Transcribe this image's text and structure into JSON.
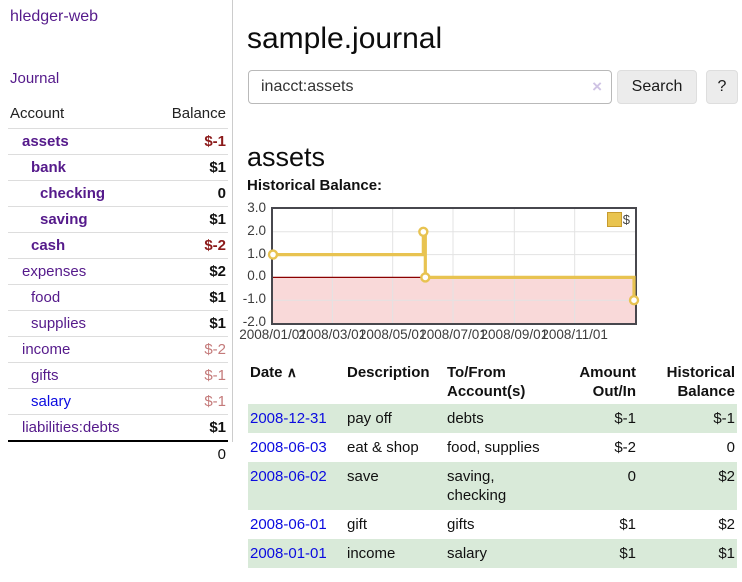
{
  "brand": "hledger-web",
  "nav": {
    "journal": "Journal"
  },
  "sidebar": {
    "col_account": "Account",
    "col_balance": "Balance",
    "accounts": [
      {
        "name": "assets",
        "balance": "$-1"
      },
      {
        "name": "bank",
        "balance": "$1"
      },
      {
        "name": "checking",
        "balance": "0"
      },
      {
        "name": "saving",
        "balance": "$1"
      },
      {
        "name": "cash",
        "balance": "$-2"
      },
      {
        "name": "expenses",
        "balance": "$2"
      },
      {
        "name": "food",
        "balance": "$1"
      },
      {
        "name": "supplies",
        "balance": "$1"
      },
      {
        "name": "income",
        "balance": "$-2"
      },
      {
        "name": "gifts",
        "balance": "$-1"
      },
      {
        "name": "salary",
        "balance": "$-1"
      },
      {
        "name": "liabilities:debts",
        "balance": "$1"
      }
    ],
    "total": "0"
  },
  "header": {
    "title": "sample.journal"
  },
  "search": {
    "value": "inacct:assets",
    "clear_icon": "×",
    "search_label": "Search",
    "help_label": "?"
  },
  "account_page": {
    "heading": "assets",
    "chart_title": "Historical Balance:"
  },
  "chart_data": {
    "type": "line",
    "step": true,
    "title": "Historical Balance",
    "series": [
      {
        "name": "$",
        "color": "#e8c351",
        "points": [
          {
            "date": "2008/01/01",
            "value": 1
          },
          {
            "date": "2008/06/01",
            "value": 2
          },
          {
            "date": "2008/06/03",
            "value": 0
          },
          {
            "date": "2008/12/31",
            "value": -1
          }
        ]
      }
    ],
    "x_range": [
      "2008/01/01",
      "2009/01/01"
    ],
    "ylim": [
      -2,
      3
    ],
    "y_ticks": [
      "3.0",
      "2.0",
      "1.0",
      "0.0",
      "-1.0",
      "-2.0"
    ],
    "x_ticks": [
      "2008/01/01",
      "2008/03/01",
      "2008/05/01",
      "2008/07/01",
      "2008/09/01",
      "2008/11/01"
    ],
    "grid": true,
    "legend_position": "top-right",
    "negative_region_color": "#f9d9d9",
    "zero_line_color": "#8b0000",
    "grid_color": "#e3e3e3"
  },
  "register": {
    "headers": {
      "date": "Date",
      "sort_asc_icon": "∧",
      "description": "Description",
      "tofrom_1": "To/From",
      "tofrom_2": "Account(s)",
      "amount_1": "Amount",
      "amount_2": "Out/In",
      "balance_1": "Historical",
      "balance_2": "Balance"
    },
    "rows": [
      {
        "date": "2008-12-31",
        "description": "pay off",
        "accounts": "debts",
        "amount": "$-1",
        "balance": "$-1"
      },
      {
        "date": "2008-06-03",
        "description": "eat & shop",
        "accounts": "food, supplies",
        "amount": "$-2",
        "balance": "0"
      },
      {
        "date": "2008-06-02",
        "description": "save",
        "accounts": "saving, checking",
        "amount": "0",
        "balance": "$2"
      },
      {
        "date": "2008-06-01",
        "description": "gift",
        "accounts": "gifts",
        "amount": "$1",
        "balance": "$2"
      },
      {
        "date": "2008-01-01",
        "description": "income",
        "accounts": "salary",
        "amount": "$1",
        "balance": "$1"
      }
    ]
  },
  "colors": {
    "link_purple": "#551a8b",
    "link_blue": "#0b0be0",
    "negative_dark": "#8b1a1a",
    "negative_light": "#c47a7a",
    "row_stripe_green": "#d9ead9",
    "chart_line_gold": "#e8c351"
  }
}
